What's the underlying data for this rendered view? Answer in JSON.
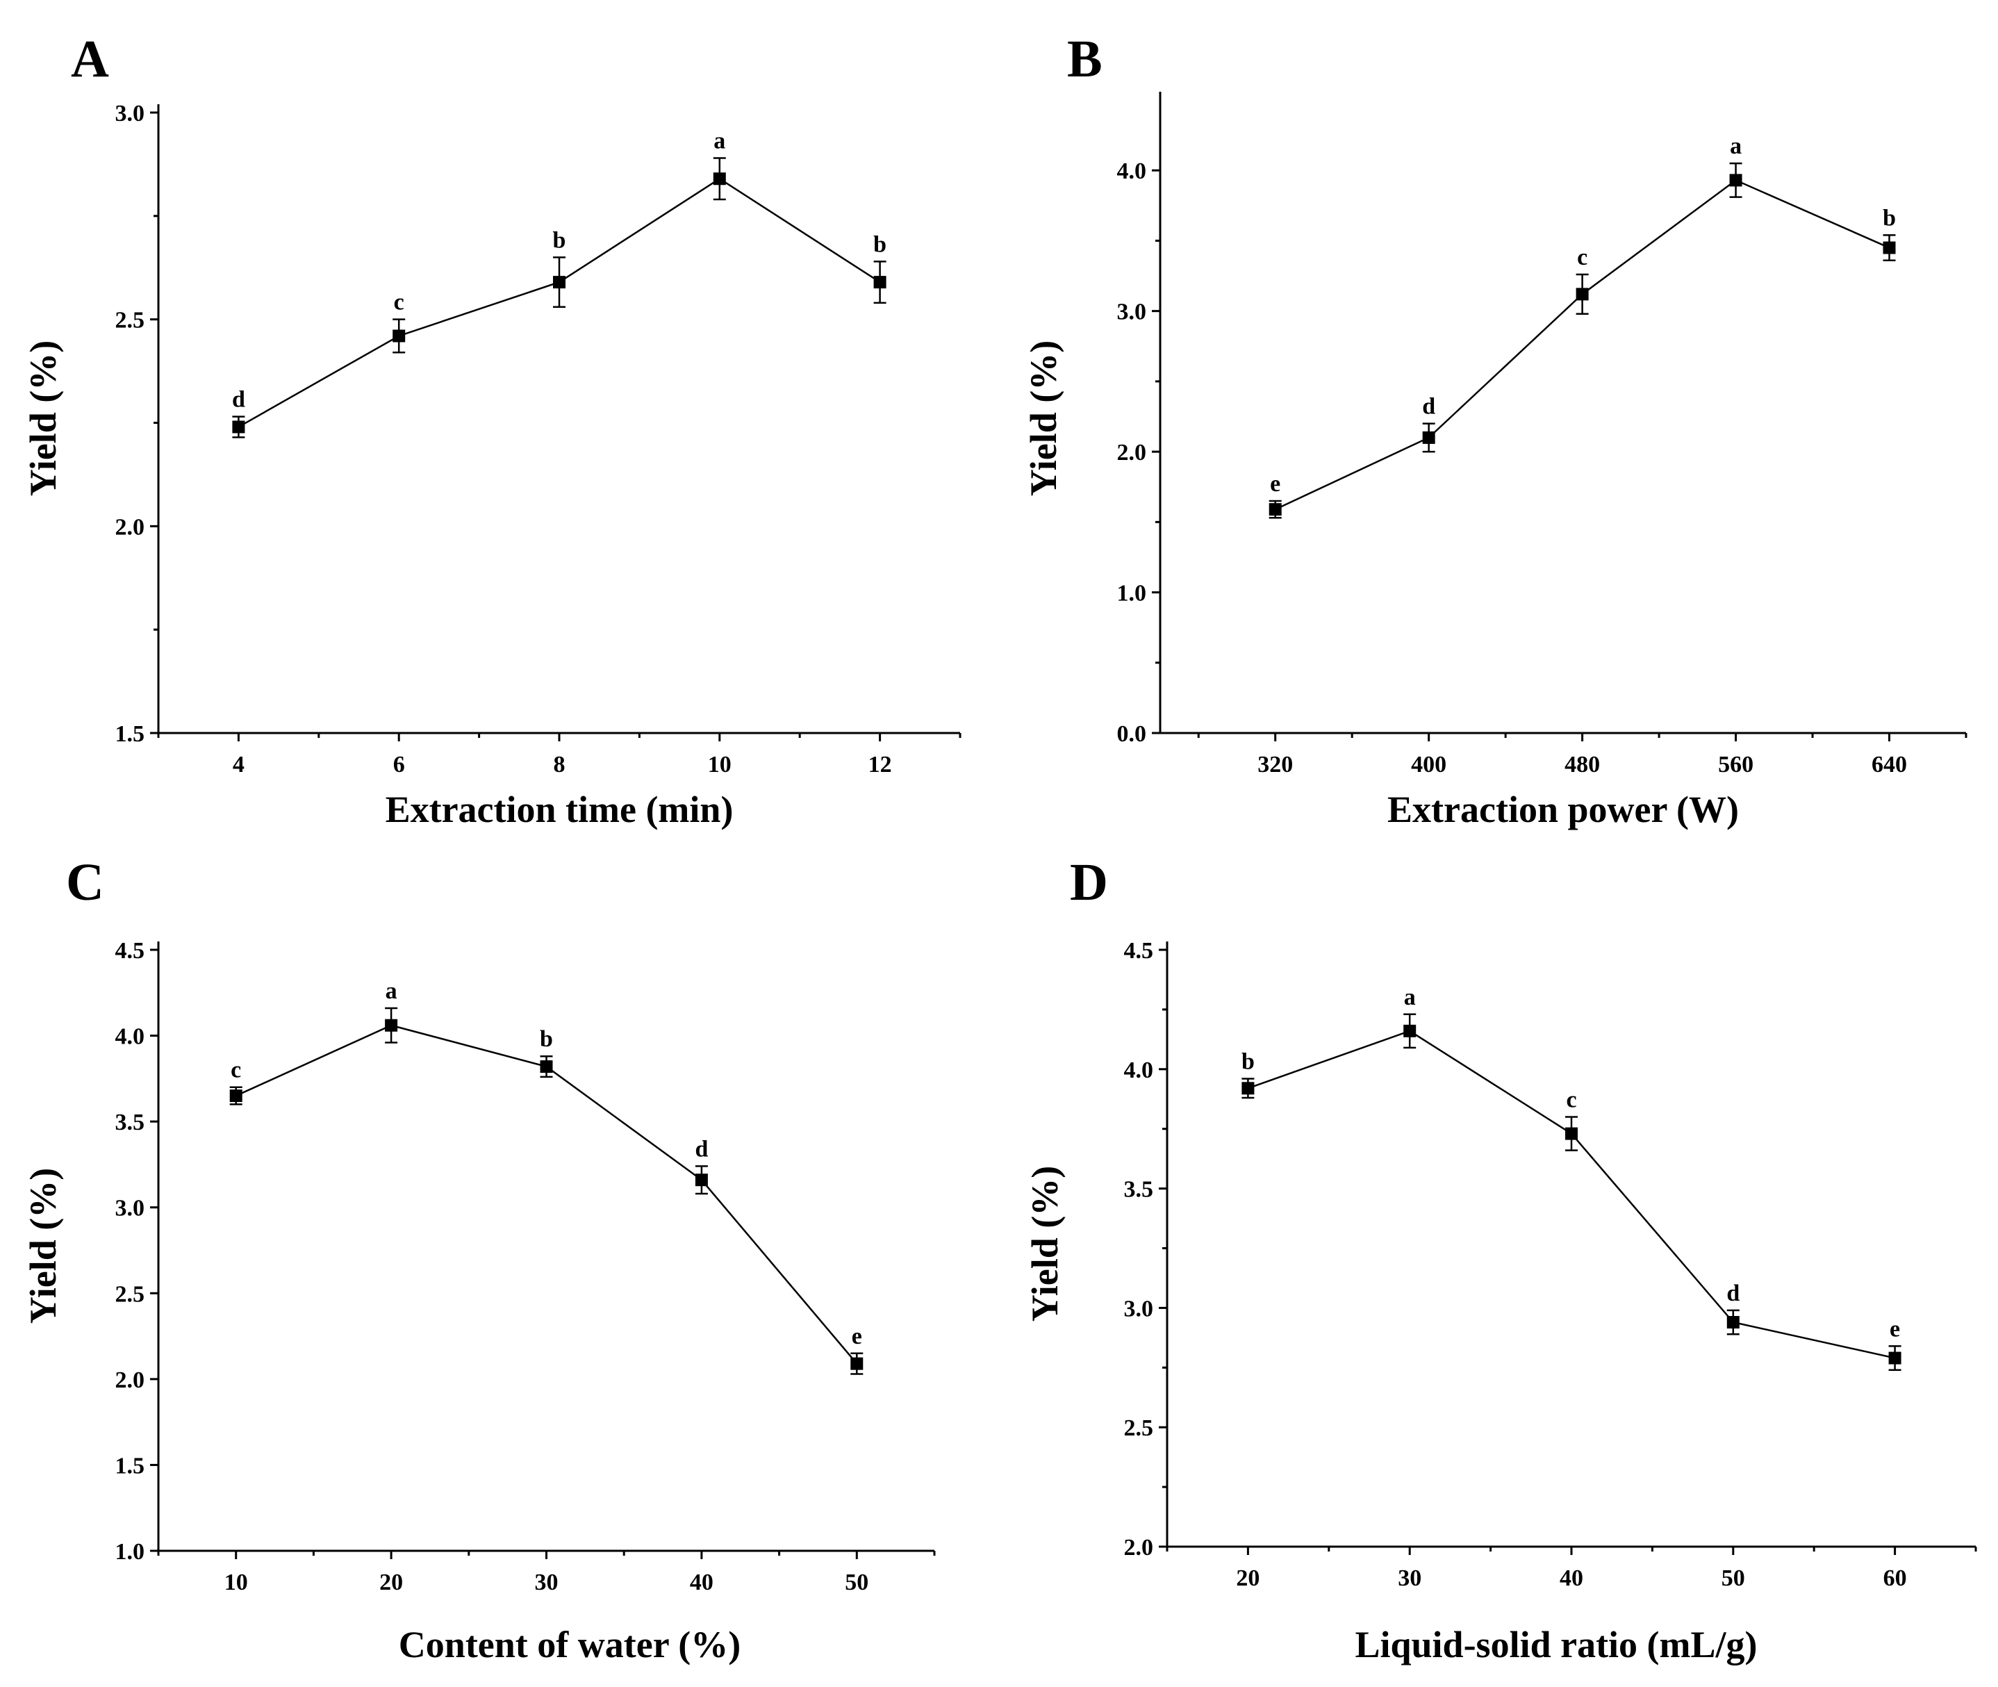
{
  "chart_data": [
    {
      "id": "A",
      "type": "line",
      "panel_label": "A",
      "xlabel": "Extraction time (min)",
      "ylabel": "Yield (%)",
      "x": [
        4,
        6,
        8,
        10,
        12
      ],
      "xticks": [
        "4",
        "6",
        "8",
        "10",
        "12"
      ],
      "xlim": [
        3,
        13
      ],
      "ylim": [
        1.5,
        3.0
      ],
      "yticks": [
        "1.5",
        "2.0",
        "2.5",
        "3.0"
      ],
      "ytick_values": [
        1.5,
        2.0,
        2.5,
        3.0
      ],
      "y": [
        2.24,
        2.46,
        2.59,
        2.84,
        2.59
      ],
      "yerr": [
        0.025,
        0.04,
        0.06,
        0.05,
        0.05
      ],
      "significance": [
        "d",
        "c",
        "b",
        "a",
        "b"
      ]
    },
    {
      "id": "B",
      "type": "line",
      "panel_label": "B",
      "xlabel": "Extraction power (W)",
      "ylabel": "Yield (%)",
      "x": [
        320,
        400,
        480,
        560,
        640
      ],
      "xticks": [
        "320",
        "400",
        "480",
        "560",
        "640"
      ],
      "xlim": [
        260,
        680
      ],
      "ylim": [
        0.0,
        4.5
      ],
      "yticks": [
        "0.0",
        "1.0",
        "2.0",
        "3.0",
        "4.0"
      ],
      "ytick_values": [
        0.0,
        1.0,
        2.0,
        3.0,
        4.0
      ],
      "y": [
        1.59,
        2.1,
        3.12,
        3.93,
        3.45
      ],
      "yerr": [
        0.06,
        0.1,
        0.14,
        0.12,
        0.09
      ],
      "significance": [
        "e",
        "d",
        "c",
        "a",
        "b"
      ]
    },
    {
      "id": "C",
      "type": "line",
      "panel_label": "C",
      "xlabel": "Content of water (%)",
      "ylabel": "Yield (%)",
      "x": [
        10,
        20,
        30,
        40,
        50
      ],
      "xticks": [
        "10",
        "20",
        "30",
        "40",
        "50"
      ],
      "xlim": [
        5,
        55
      ],
      "ylim": [
        1.0,
        4.5
      ],
      "yticks": [
        "1.0",
        "1.5",
        "2.0",
        "2.5",
        "3.0",
        "3.5",
        "4.0",
        "4.5"
      ],
      "ytick_values": [
        1.0,
        1.5,
        2.0,
        2.5,
        3.0,
        3.5,
        4.0,
        4.5
      ],
      "y": [
        3.65,
        4.06,
        3.82,
        3.16,
        2.09
      ],
      "yerr": [
        0.05,
        0.1,
        0.06,
        0.08,
        0.06
      ],
      "significance": [
        "c",
        "a",
        "b",
        "d",
        "e"
      ]
    },
    {
      "id": "D",
      "type": "line",
      "panel_label": "D",
      "xlabel": "Liquid-solid ratio (mL/g)",
      "ylabel": "Yield (%)",
      "x": [
        20,
        30,
        40,
        50,
        60
      ],
      "xticks": [
        "20",
        "30",
        "40",
        "50",
        "60"
      ],
      "xlim": [
        15,
        65
      ],
      "ylim": [
        2.0,
        4.5
      ],
      "yticks": [
        "2.0",
        "2.5",
        "3.0",
        "3.5",
        "4.0",
        "4.5"
      ],
      "ytick_values": [
        2.0,
        2.5,
        3.0,
        3.5,
        4.0,
        4.5
      ],
      "y": [
        3.92,
        4.16,
        3.73,
        2.94,
        2.79
      ],
      "yerr": [
        0.04,
        0.07,
        0.07,
        0.05,
        0.05
      ],
      "significance": [
        "b",
        "a",
        "c",
        "d",
        "e"
      ]
    }
  ]
}
